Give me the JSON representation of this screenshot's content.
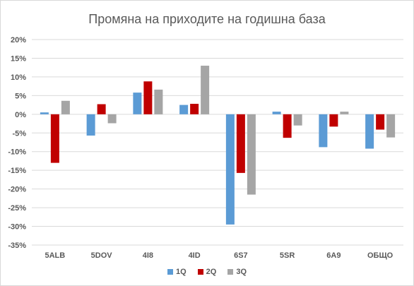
{
  "chart_data": {
    "type": "bar",
    "title": "Промяна на приходите на годишна база",
    "categories": [
      "5ALB",
      "5DOV",
      "4I8",
      "4ID",
      "6S7",
      "5SR",
      "6A9",
      "ОБЩО"
    ],
    "series": [
      {
        "name": "1Q",
        "color": "#5B9BD5",
        "values": [
          0.5,
          -5.7,
          5.8,
          2.5,
          -29.5,
          0.7,
          -8.8,
          -9.2
        ]
      },
      {
        "name": "2Q",
        "color": "#C00000",
        "values": [
          -13.0,
          2.7,
          8.8,
          2.8,
          -15.7,
          -6.3,
          -3.3,
          -4.1
        ]
      },
      {
        "name": "3Q",
        "color": "#A5A5A5",
        "values": [
          3.6,
          -2.4,
          6.6,
          13.0,
          -21.5,
          -3.0,
          0.7,
          -6.2
        ]
      }
    ],
    "ylim": [
      -35,
      20
    ],
    "yticks": [
      20,
      15,
      10,
      5,
      0,
      -5,
      -10,
      -15,
      -20,
      -25,
      -30,
      -35
    ],
    "ytick_labels": [
      "20%",
      "15%",
      "10%",
      "5%",
      "0%",
      "-5%",
      "-10%",
      "-15%",
      "-20%",
      "-25%",
      "-30%",
      "-35%"
    ],
    "grid": true,
    "legend_position": "bottom"
  }
}
